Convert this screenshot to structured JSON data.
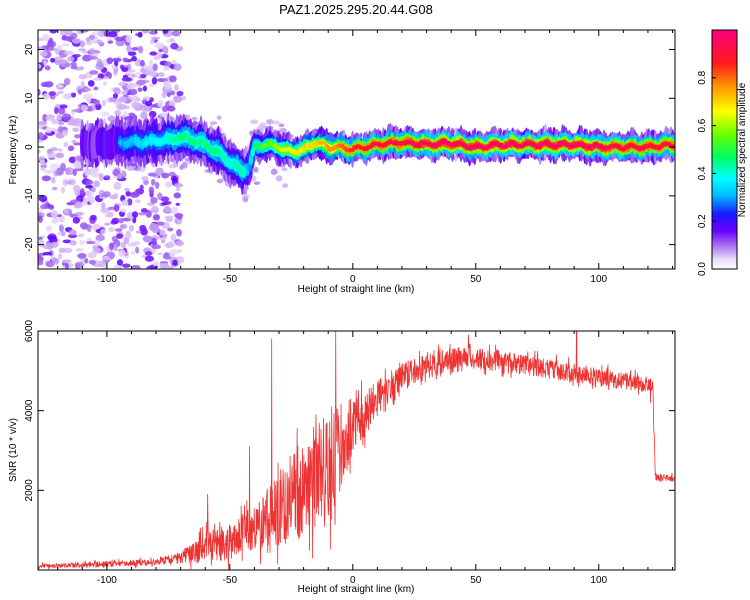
{
  "title": "PAZ1.2025.295.20.44.G08",
  "chart_data": [
    {
      "type": "heatmap",
      "name": "spectrogram",
      "xlabel": "Height of straight line (km)",
      "ylabel": "Frequency (Hz)",
      "xlim": [
        -128,
        131
      ],
      "ylim": [
        -25,
        24
      ],
      "x_ticks": [
        -100,
        -50,
        0,
        50,
        100
      ],
      "x_tick_labels": [
        "-100",
        "-50",
        "0",
        "50",
        "100"
      ],
      "y_ticks": [
        -20,
        -10,
        0,
        10,
        20
      ],
      "y_tick_labels": [
        "-20",
        "-10",
        "0",
        "10",
        "20"
      ],
      "ridge": {
        "x": [
          -128,
          -110,
          -95,
          -85,
          -75,
          -70,
          -65,
          -60,
          -55,
          -50,
          -45,
          -42,
          -40,
          -35,
          -30,
          -25,
          -20,
          -15,
          -10,
          -5,
          0,
          10,
          20,
          30,
          40,
          50,
          60,
          70,
          80,
          90,
          100,
          110,
          120,
          131
        ],
        "freq": [
          0,
          0.5,
          1,
          1,
          1.5,
          2,
          1.5,
          0.5,
          -1,
          -3,
          -5,
          -4,
          0,
          0.5,
          0,
          -1,
          -0.5,
          1,
          0,
          0,
          -0.5,
          0.5,
          1,
          0.5,
          0.8,
          0,
          0.5,
          0.5,
          0.5,
          0.5,
          0,
          0,
          0,
          0.5
        ],
        "amplitude": [
          0.15,
          0.2,
          0.3,
          0.35,
          0.4,
          0.45,
          0.45,
          0.45,
          0.45,
          0.4,
          0.45,
          0.3,
          0.45,
          0.55,
          0.6,
          0.65,
          0.7,
          0.7,
          0.75,
          0.8,
          0.85,
          0.9,
          0.9,
          0.95,
          0.95,
          0.95,
          0.95,
          0.95,
          0.95,
          0.95,
          0.95,
          0.9,
          0.9,
          0.9
        ]
      }
    },
    {
      "type": "colorbar",
      "name": "colorbar",
      "label": "Normalized spectral amplitude",
      "range": [
        0,
        1
      ],
      "ticks": [
        0.0,
        0.2,
        0.4,
        0.6,
        0.8
      ],
      "tick_labels": [
        "0.0",
        "0.2",
        "0.4",
        "0.6",
        "0.8"
      ]
    },
    {
      "type": "line",
      "name": "snr",
      "xlabel": "Height of straight line (km)",
      "ylabel": "SNR (10 * v/v)",
      "xlim": [
        -128,
        131
      ],
      "ylim": [
        0,
        6000
      ],
      "x_ticks": [
        -100,
        -50,
        0,
        50,
        100
      ],
      "x_tick_labels": [
        "-100",
        "-50",
        "0",
        "50",
        "100"
      ],
      "y_ticks": [
        2000,
        4000,
        6000
      ],
      "y_tick_labels": [
        "2000",
        "4000",
        "6000"
      ],
      "color": "#ee3333",
      "trend": {
        "x": [
          -128,
          -100,
          -80,
          -70,
          -60,
          -50,
          -45,
          -40,
          -35,
          -30,
          -25,
          -20,
          -15,
          -10,
          -5,
          0,
          5,
          10,
          15,
          20,
          25,
          30,
          35,
          40,
          45,
          50,
          60,
          70,
          80,
          90,
          100,
          110,
          120,
          122,
          123,
          131
        ],
        "y": [
          100,
          150,
          200,
          300,
          600,
          700,
          900,
          1000,
          1300,
          1500,
          1800,
          2000,
          2300,
          2600,
          3100,
          3600,
          3900,
          4300,
          4600,
          4900,
          5000,
          5100,
          5200,
          5300,
          5350,
          5300,
          5250,
          5150,
          5050,
          4950,
          4850,
          4750,
          4650,
          4600,
          2350,
          2300
        ]
      },
      "noise": {
        "x": [
          -128,
          -80,
          -70,
          -60,
          -50,
          -40,
          -30,
          -20,
          -10,
          0,
          10,
          20,
          40,
          60,
          80,
          100,
          120,
          122,
          123,
          131
        ],
        "amplitude": [
          60,
          80,
          150,
          400,
          450,
          550,
          900,
          1300,
          1500,
          700,
          450,
          350,
          280,
          260,
          250,
          220,
          200,
          200,
          80,
          80
        ]
      },
      "spikes": [
        {
          "x": -59,
          "y": 1900
        },
        {
          "x": -42,
          "y": 3100
        },
        {
          "x": -33,
          "y": 5800
        },
        {
          "x": -24,
          "y": 2900
        },
        {
          "x": -15,
          "y": 3900
        },
        {
          "x": -7,
          "y": 6000
        },
        {
          "x": 47,
          "y": 5900
        },
        {
          "x": 91,
          "y": 6000
        },
        {
          "x": 121,
          "y": 4200
        }
      ]
    }
  ]
}
